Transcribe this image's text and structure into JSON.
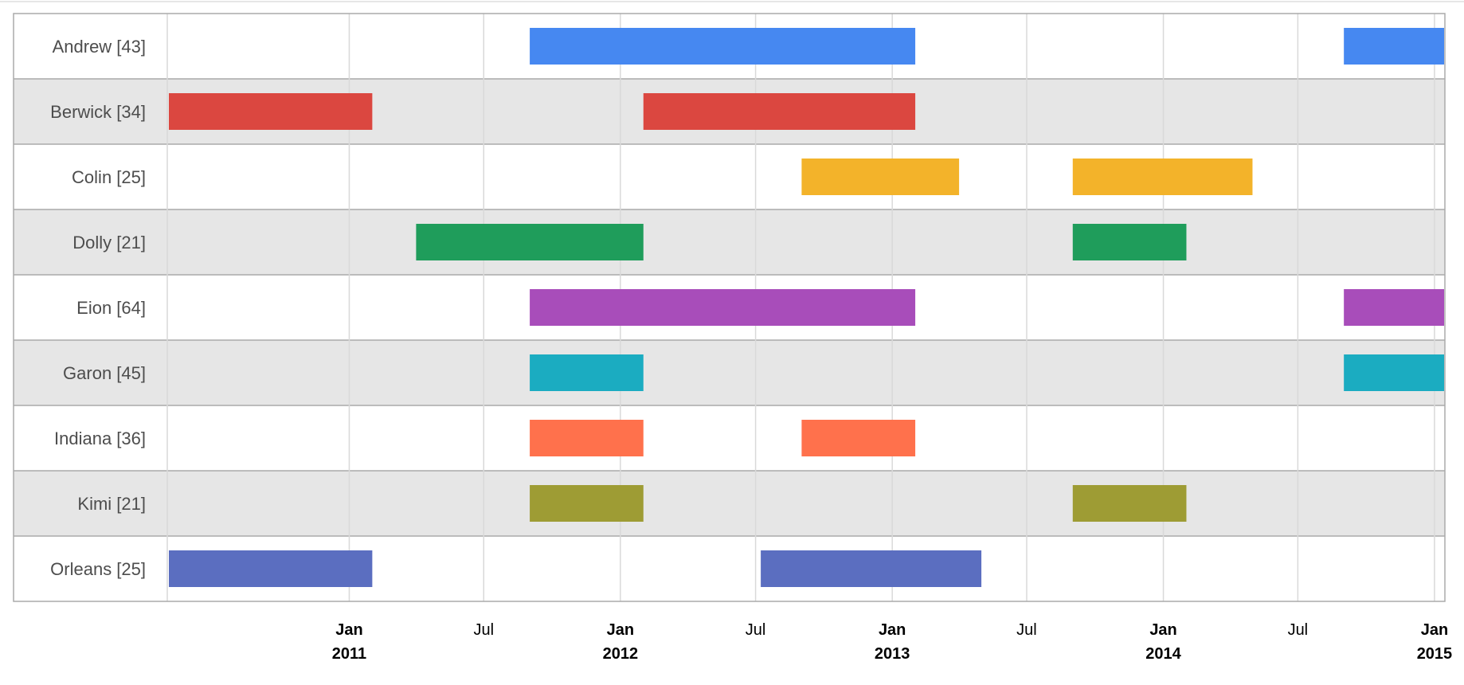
{
  "chart_data": {
    "type": "timeline",
    "title": "",
    "xlabel": "",
    "ylabel": "",
    "x_range": [
      "2010-05-01",
      "2015-01-15"
    ],
    "x_ticks": [
      {
        "date": "2011-01-01",
        "month": "Jan",
        "year": "2011"
      },
      {
        "date": "2011-07-01",
        "month": "Jul",
        "year": ""
      },
      {
        "date": "2012-01-01",
        "month": "Jan",
        "year": "2012"
      },
      {
        "date": "2012-07-01",
        "month": "Jul",
        "year": ""
      },
      {
        "date": "2013-01-01",
        "month": "Jan",
        "year": "2013"
      },
      {
        "date": "2013-07-01",
        "month": "Jul",
        "year": ""
      },
      {
        "date": "2014-01-01",
        "month": "Jan",
        "year": "2014"
      },
      {
        "date": "2014-07-01",
        "month": "Jul",
        "year": ""
      },
      {
        "date": "2015-01-01",
        "month": "Jan",
        "year": "2015"
      }
    ],
    "rows": [
      {
        "label": "Andrew [43]",
        "color": "#4688f1",
        "bars": [
          {
            "start": "2011-09-01",
            "end": "2013-02-01"
          },
          {
            "start": "2014-09-01",
            "end": "2015-01-15"
          }
        ]
      },
      {
        "label": "Berwick [34]",
        "color": "#db4740",
        "bars": [
          {
            "start": "2010-05-01",
            "end": "2011-02-01"
          },
          {
            "start": "2012-02-01",
            "end": "2013-02-01"
          }
        ]
      },
      {
        "label": "Colin [25]",
        "color": "#f3b32a",
        "bars": [
          {
            "start": "2012-09-01",
            "end": "2013-04-01"
          },
          {
            "start": "2013-09-01",
            "end": "2014-05-01"
          }
        ]
      },
      {
        "label": "Dolly [21]",
        "color": "#1f9d5b",
        "bars": [
          {
            "start": "2011-04-01",
            "end": "2012-02-01"
          },
          {
            "start": "2013-09-01",
            "end": "2014-02-01"
          }
        ]
      },
      {
        "label": "Eion [64]",
        "color": "#a84dba",
        "bars": [
          {
            "start": "2011-09-01",
            "end": "2013-02-01"
          },
          {
            "start": "2014-09-01",
            "end": "2015-01-15"
          }
        ]
      },
      {
        "label": "Garon [45]",
        "color": "#1bacc1",
        "bars": [
          {
            "start": "2011-09-01",
            "end": "2012-02-01"
          },
          {
            "start": "2014-09-01",
            "end": "2015-01-15"
          }
        ]
      },
      {
        "label": "Indiana [36]",
        "color": "#ff714c",
        "bars": [
          {
            "start": "2011-09-01",
            "end": "2012-02-01"
          },
          {
            "start": "2012-09-01",
            "end": "2013-02-01"
          }
        ]
      },
      {
        "label": "Kimi [21]",
        "color": "#9e9c34",
        "bars": [
          {
            "start": "2011-09-01",
            "end": "2012-02-01"
          },
          {
            "start": "2013-09-01",
            "end": "2014-02-01"
          }
        ]
      },
      {
        "label": "Orleans [25]",
        "color": "#5b6ec0",
        "bars": [
          {
            "start": "2010-05-01",
            "end": "2011-02-01"
          },
          {
            "start": "2012-07-08",
            "end": "2013-05-01"
          }
        ]
      }
    ],
    "grid": true,
    "legend": "none",
    "row_shading": {
      "even": "#ffffff",
      "odd": "#e6e6e6"
    }
  }
}
